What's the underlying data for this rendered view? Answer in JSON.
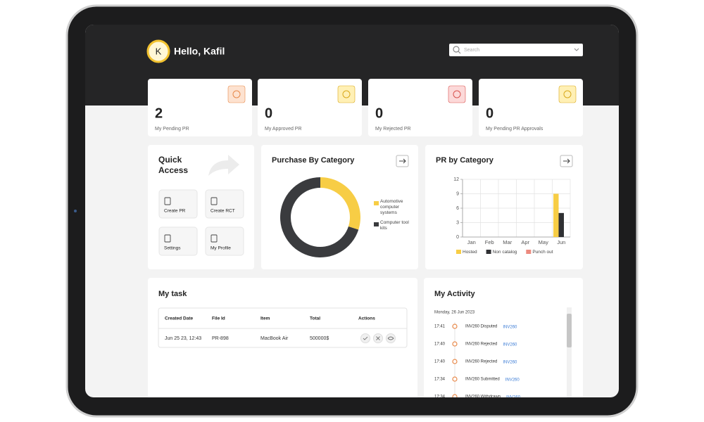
{
  "header": {
    "avatar": "K",
    "greeting": "Hello, Kafil",
    "search_placeholder": "Search"
  },
  "stats": [
    {
      "value": 2,
      "label": "My Pending PR"
    },
    {
      "value": 0,
      "label": "My Approved PR"
    },
    {
      "value": 0,
      "label": "My Rejected PR"
    },
    {
      "value": 0,
      "label": "My Pending PR Approvals"
    }
  ],
  "quick_access": {
    "title": "Quick Access",
    "items": [
      "Create PR",
      "Create RCT",
      "Settings",
      "My Profile"
    ]
  },
  "chart_data": [
    {
      "type": "pie",
      "title": "Purchase By Category",
      "categories": [
        "Automotive computer systems",
        "Computer tool kits"
      ],
      "values": [
        30,
        70
      ],
      "colors": [
        "#f7cd45",
        "#3a3b3e"
      ]
    },
    {
      "type": "bar",
      "title": "PR by Category",
      "categories": [
        "Jan",
        "Feb",
        "Mar",
        "Apr",
        "May",
        "Jun"
      ],
      "series": [
        {
          "name": "Hosted",
          "color": "#f7cd45",
          "values": [
            0,
            0,
            0,
            0,
            0,
            9
          ]
        },
        {
          "name": "Non catalog",
          "color": "#2f3033",
          "values": [
            0,
            0,
            0,
            0,
            0,
            5
          ]
        },
        {
          "name": "Punch out",
          "color": "#ec8a7e",
          "values": [
            0,
            0,
            0,
            0,
            0,
            0
          ]
        }
      ],
      "ylim": [
        0,
        12
      ],
      "yticks": [
        0,
        3,
        6,
        9,
        12
      ],
      "grid": true
    }
  ],
  "my_task": {
    "title": "My task",
    "columns": [
      "Created Date",
      "File Id",
      "Item",
      "Total",
      "Actions"
    ],
    "rows": [
      [
        "Jun 25 23, 12:43",
        "PR-898",
        "MacBook Air",
        "500000$"
      ]
    ]
  },
  "my_activity": {
    "title": "My Activity",
    "date": "Monday, 26 Jun 2023",
    "items": [
      {
        "time": "17:41",
        "text": "INV260 Disputed",
        "link": "INV260"
      },
      {
        "time": "17:40",
        "text": "INV260 Rejected",
        "link": "INV260"
      },
      {
        "time": "17:40",
        "text": "INV260 Rejected",
        "link": "INV260"
      },
      {
        "time": "17:34",
        "text": "INV260 Submitted",
        "link": "INV260"
      },
      {
        "time": "17:34",
        "text": "INV260 Withdrawn",
        "link": "INV260"
      }
    ]
  }
}
